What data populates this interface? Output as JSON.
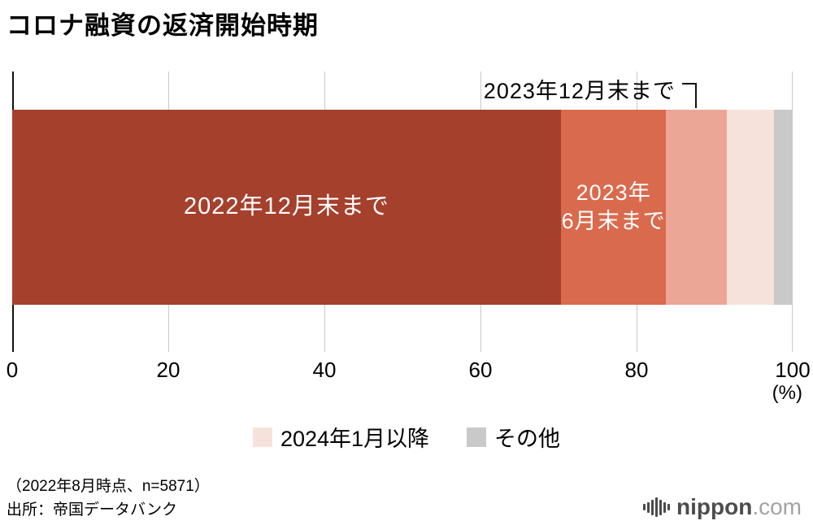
{
  "title": "コロナ融資の返済開始時期",
  "chart_data": {
    "type": "bar",
    "variant": "stacked-horizontal",
    "title": "コロナ融資の返済開始時期",
    "unit": "%",
    "xlim": [
      0,
      100
    ],
    "x_ticks": [
      0,
      20,
      40,
      60,
      80,
      100
    ],
    "axis_unit_label": "(%)",
    "grid": true,
    "segments": [
      {
        "label": "2022年12月末まで",
        "value": 70.3,
        "color": "#A5402D",
        "display": "2022年12月末まで",
        "label_style": "inside"
      },
      {
        "label": "2023年6月末まで",
        "value": 13.5,
        "color": "#DA6A4D",
        "display": "2023年\n6月末まで",
        "label_style": "inside"
      },
      {
        "label": "2023年12月末まで",
        "value": 7.8,
        "color": "#EBA696",
        "display": "",
        "label_style": "callout"
      },
      {
        "label": "2024年1月以降",
        "value": 6.0,
        "color": "#F7E2DB",
        "display": "",
        "label_style": "legend"
      },
      {
        "label": "その他",
        "value": 2.4,
        "color": "#C9C9C9",
        "display": "",
        "label_style": "legend"
      }
    ],
    "callout": {
      "label": "2023年12月末まで",
      "target_segment": "2023年12月末まで"
    },
    "legend_position": "bottom"
  },
  "legend": {
    "items": [
      {
        "label": "2024年1月以降",
        "color": "#F7E2DB"
      },
      {
        "label": "その他",
        "color": "#C9C9C9"
      }
    ]
  },
  "footer": {
    "note": "（2022年8月時点、n=5871）",
    "source": "出所：帝国データバンク"
  },
  "branding": {
    "logo_text": "nippon",
    "logo_suffix": ".com",
    "logo_icon": "soundwave-icon"
  }
}
